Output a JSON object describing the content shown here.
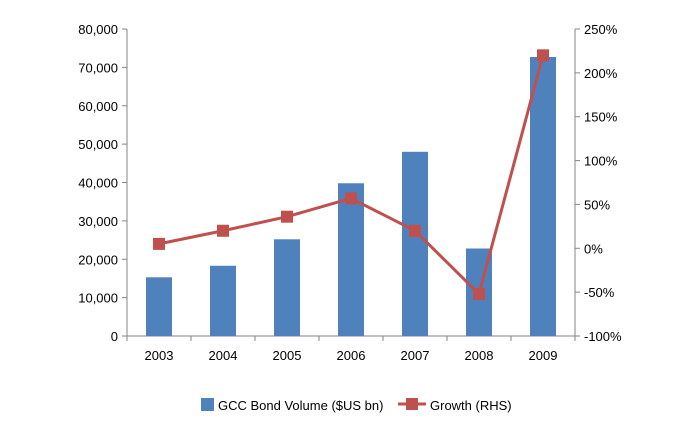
{
  "chart_data": {
    "type": "bar",
    "categories": [
      "2003",
      "2004",
      "2005",
      "2006",
      "2007",
      "2008",
      "2009"
    ],
    "series": [
      {
        "name": "GCC Bond Volume ($US bn)",
        "type": "bar",
        "axis": "left",
        "values": [
          15300,
          18300,
          25200,
          39800,
          48000,
          22800,
          72700
        ],
        "color": "#4F81BD"
      },
      {
        "name": "Growth (RHS)",
        "type": "line",
        "axis": "right",
        "values": [
          5,
          20,
          36,
          57,
          20,
          -52,
          220
        ],
        "color": "#C0504D"
      }
    ],
    "y_left": {
      "min": 0,
      "max": 80000,
      "step": 10000,
      "ticks": [
        "0",
        "10,000",
        "20,000",
        "30,000",
        "40,000",
        "50,000",
        "60,000",
        "70,000",
        "80,000"
      ]
    },
    "y_right": {
      "min": -100,
      "max": 250,
      "step": 50,
      "ticks": [
        "-100%",
        "-50%",
        "0%",
        "50%",
        "100%",
        "150%",
        "200%",
        "250%"
      ]
    },
    "grid": false,
    "legend_position": "bottom"
  }
}
